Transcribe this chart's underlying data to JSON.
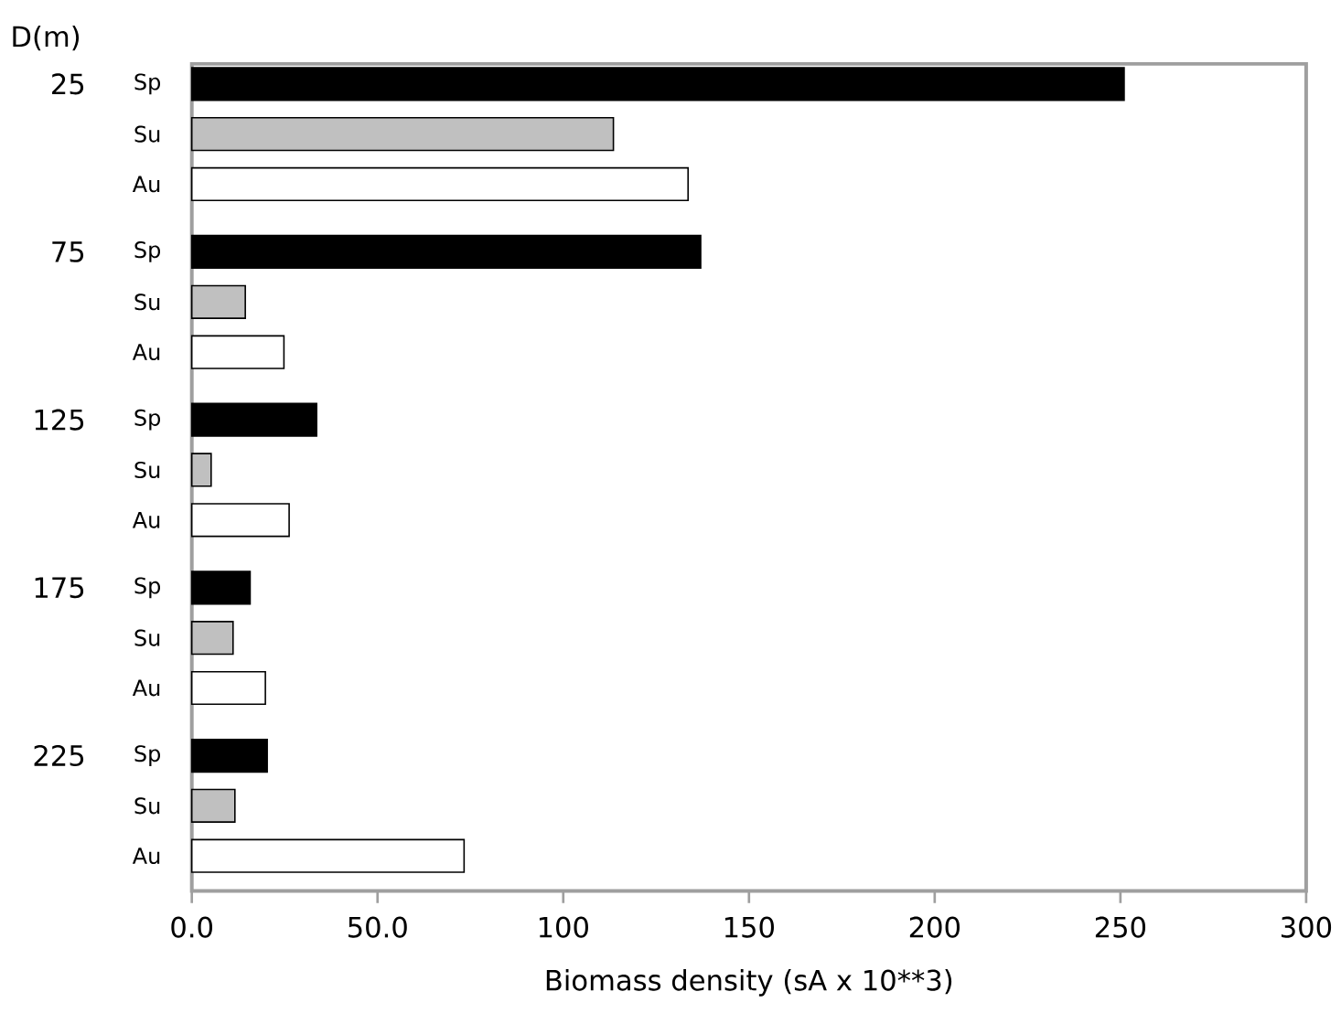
{
  "chart_data": {
    "type": "bar",
    "orientation": "horizontal",
    "ylabel": "D(m)",
    "xlabel": "Biomass density (sA x 10**3)",
    "categories": [
      "25",
      "75",
      "125",
      "175",
      "225"
    ],
    "series": [
      {
        "name": "Sp",
        "color": "#000000",
        "values": [
          251,
          137,
          33.6,
          15.7,
          20.3
        ]
      },
      {
        "name": "Su",
        "color": "#c0c0c0",
        "values": [
          113.5,
          14.4,
          5.2,
          11.1,
          11.6
        ]
      },
      {
        "name": "Au",
        "color": "#ffffff",
        "values": [
          133.6,
          24.8,
          26.2,
          19.8,
          73.3
        ]
      }
    ],
    "xlim": [
      0,
      300
    ],
    "xticks": [
      {
        "value": 0,
        "label": "0.0"
      },
      {
        "value": 50,
        "label": "50.0"
      },
      100,
      150,
      200,
      250,
      300
    ]
  }
}
